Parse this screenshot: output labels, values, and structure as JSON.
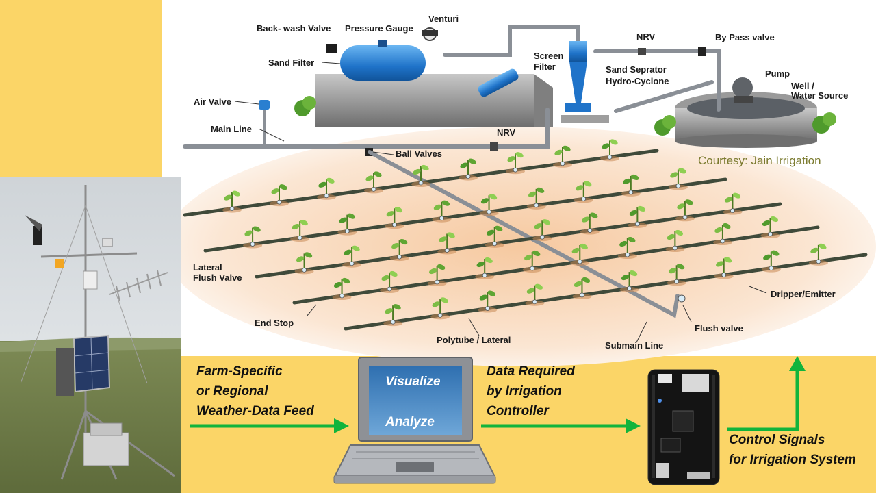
{
  "diagram": {
    "labels": {
      "backwash_valve": "Back- wash Valve",
      "pressure_gauge": "Pressure Gauge",
      "venturi": "Venturi",
      "sand_filter": "Sand Filter",
      "screen_filter_1": "Screen",
      "screen_filter_2": "Filter",
      "sand_separator_1": "Sand Seprator",
      "sand_separator_2": "Hydro-Cyclone",
      "nrv_top": "NRV",
      "bypass_valve": "By Pass valve",
      "pump": "Pump",
      "well_1": "Well /",
      "well_2": "Water Source",
      "air_valve": "Air Valve",
      "main_line": "Main Line",
      "nrv_mid": "NRV",
      "ball_valves": "Ball Valves",
      "courtesy": "Courtesy: Jain Irrigation",
      "lateral_flush_1": "Lateral",
      "lateral_flush_2": "Flush Valve",
      "dripper": "Dripper/Emitter",
      "end_stop": "End Stop",
      "flush_valve": "Flush valve",
      "polytube": "Polytube / Lateral",
      "submain": "Submain Line"
    }
  },
  "flow": {
    "weather_1": "Farm-Specific",
    "weather_2": "or Regional",
    "weather_3": "Weather-Data Feed",
    "data_1": "Data Required",
    "data_2": "by Irrigation",
    "data_3": "Controller",
    "control_1": "Control Signals",
    "control_2": "for Irrigation System"
  },
  "laptop": {
    "visualize": "Visualize",
    "analyze": "Analyze"
  },
  "colors": {
    "background": "#fbd567",
    "arrow": "#12b43c",
    "pipe": "#8a8f96",
    "pump_blue": "#2a7fd0"
  }
}
